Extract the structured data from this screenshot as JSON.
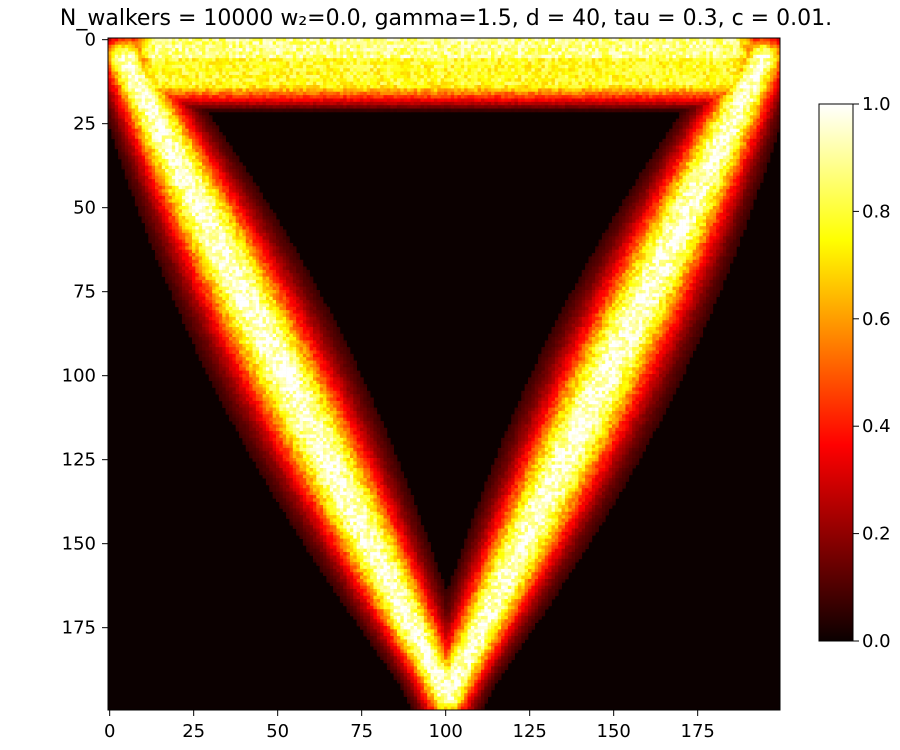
{
  "chart_data": {
    "type": "heatmap",
    "title": "N_walkers = 10000 w₂=0.0, gamma=1.5, d = 40, tau = 0.3, c = 0.01.",
    "xlabel": "",
    "ylabel": "",
    "grid": false,
    "colormap": "hot",
    "xlim": [
      -0.5,
      199.5
    ],
    "ylim": [
      199.5,
      -0.5
    ],
    "x_ticks": [
      0,
      25,
      50,
      75,
      100,
      125,
      150,
      175
    ],
    "x_tick_labels": [
      "0",
      "25",
      "50",
      "75",
      "100",
      "125",
      "150",
      "175"
    ],
    "y_ticks": [
      0,
      25,
      50,
      75,
      100,
      125,
      150,
      175
    ],
    "y_tick_labels": [
      "0",
      "25",
      "50",
      "75",
      "100",
      "125",
      "150",
      "175"
    ],
    "colorbar": {
      "range": [
        0.0,
        1.0
      ],
      "ticks": [
        0.0,
        0.2,
        0.4,
        0.6,
        0.8,
        1.0
      ],
      "tick_labels": [
        "0.0",
        "0.2",
        "0.4",
        "0.6",
        "0.8",
        "1.0"
      ]
    },
    "description_shape": {
      "vertices": [
        [
          5,
          6
        ],
        [
          195,
          6
        ],
        [
          101,
          196
        ]
      ],
      "top_band_rows": [
        1,
        20
      ],
      "arm_width_cells": 28
    }
  }
}
